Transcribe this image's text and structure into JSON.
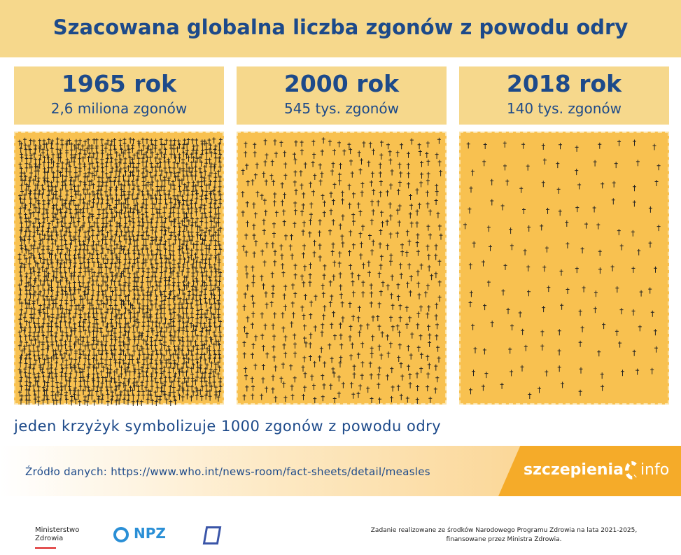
{
  "title": "Szacowana globalna liczba zgonów z powodu odry",
  "chart_data": {
    "type": "pictogram",
    "title": "Szacowana globalna liczba zgonów z powodu odry",
    "unit_note": "jeden krzyżyk symbolizuje 1000 zgonów z powodu odry",
    "categories": [
      "1965 rok",
      "2000 rok",
      "2018 rok"
    ],
    "labels": [
      "2,6 miliona zgonów",
      "545 tys. zgonów",
      "140 tys. zgonów"
    ],
    "values": [
      2600000,
      545000,
      140000
    ],
    "deaths_per_icon": 1000
  },
  "source": "Źródło danych: https://www.who.int/news-room/fact-sheets/detail/measles",
  "brand": {
    "left": "szczepienia",
    "right": "info"
  },
  "footer": {
    "ministry": [
      "Ministerstwo",
      "Zdrowia"
    ],
    "npz": "NPZ",
    "funding": [
      "Zadanie realizowane ze środków Narodowego Programu Zdrowia na lata 2021-2025,",
      "finansowane przez Ministra Zdrowia."
    ]
  },
  "colors": {
    "title": "#1d4a8a",
    "panel": "#f8c150",
    "header": "#f6d88c",
    "brand": "#f5ab29"
  }
}
